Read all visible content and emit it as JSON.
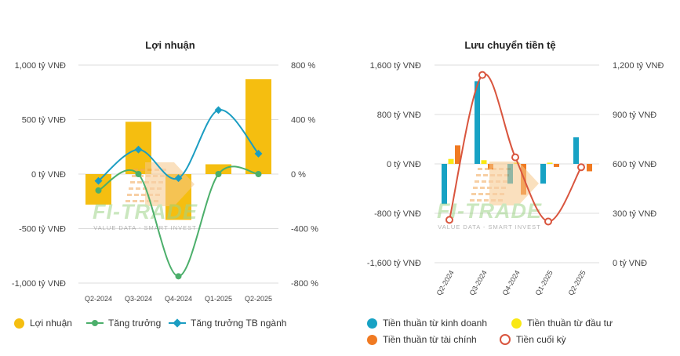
{
  "watermark": {
    "brand": "FI-TRADE",
    "tagline": "VALUE DATA - SMART INVEST"
  },
  "left": {
    "title": "Lợi nhuận",
    "legend": [
      "Lợi nhuận",
      "Tăng trưởng",
      "Tăng trưởng TB ngành"
    ]
  },
  "right": {
    "title": "Lưu chuyển tiền tệ",
    "legend": [
      "Tiền thuần từ kinh doanh",
      "Tiền thuần từ đầu tư",
      "Tiền thuần từ tài chính",
      "Tiền cuối kỳ"
    ]
  },
  "chart_data": [
    {
      "type": "bar",
      "title": "Lợi nhuận",
      "categories": [
        "Q2-2024",
        "Q3-2024",
        "Q4-2024",
        "Q1-2025",
        "Q2-2025"
      ],
      "y_left": {
        "ticks": [
          "1,000 tỷ VNĐ",
          "500 tỷ VNĐ",
          "0 tỷ VNĐ",
          "-500 tỷ VNĐ",
          "-1,000 tỷ VNĐ"
        ],
        "range": [
          -1000,
          1000
        ]
      },
      "y_right": {
        "ticks": [
          "800 %",
          "400 %",
          "0 %",
          "-400 %",
          "-800 %"
        ],
        "range": [
          -800,
          800
        ]
      },
      "series": [
        {
          "name": "Lợi nhuận",
          "kind": "bar",
          "axis": "left",
          "color": "#f5be10",
          "values": [
            -280,
            480,
            -420,
            90,
            870
          ]
        },
        {
          "name": "Tăng trưởng",
          "kind": "line",
          "axis": "right",
          "color": "#4caf6b",
          "values": [
            -120,
            0,
            -750,
            0,
            0
          ]
        },
        {
          "name": "Tăng trưởng TB ngành",
          "kind": "line",
          "axis": "right",
          "color": "#1b9dc2",
          "values": [
            -50,
            180,
            -30,
            470,
            150
          ]
        }
      ],
      "grid": true,
      "legend_position": "bottom"
    },
    {
      "type": "bar",
      "title": "Lưu chuyển tiền tệ",
      "categories": [
        "Q2-2024",
        "Q3-2024",
        "Q4-2024",
        "Q1-2025",
        "Q2-2025"
      ],
      "y_left": {
        "ticks": [
          "1,600 tỷ VNĐ",
          "800 tỷ VNĐ",
          "0 tỷ VNĐ",
          "-800 tỷ VNĐ",
          "-1,600 tỷ VNĐ"
        ],
        "range": [
          -1600,
          1600
        ]
      },
      "y_right": {
        "ticks": [
          "1,200 tỷ VNĐ",
          "900 tỷ VNĐ",
          "600 tỷ VNĐ",
          "300 tỷ VNĐ",
          "0 tỷ VNĐ"
        ],
        "range": [
          0,
          1200
        ]
      },
      "series": [
        {
          "name": "Tiền thuần từ kinh doanh",
          "kind": "bar",
          "axis": "left",
          "color": "#17a2c4",
          "values": [
            -650,
            1340,
            -320,
            -320,
            430
          ]
        },
        {
          "name": "Tiền thuần từ đầu tư",
          "kind": "bar",
          "axis": "left",
          "color": "#f9e814",
          "values": [
            80,
            60,
            20,
            20,
            0
          ]
        },
        {
          "name": "Tiền thuần từ tài chính",
          "kind": "bar",
          "axis": "left",
          "color": "#f07a22",
          "values": [
            300,
            -90,
            -500,
            -50,
            -120
          ]
        },
        {
          "name": "Tiền cuối kỳ",
          "kind": "line",
          "axis": "right",
          "color": "#d9553e",
          "values": [
            260,
            1140,
            640,
            250,
            580
          ]
        }
      ],
      "grid": true,
      "legend_position": "bottom"
    }
  ]
}
